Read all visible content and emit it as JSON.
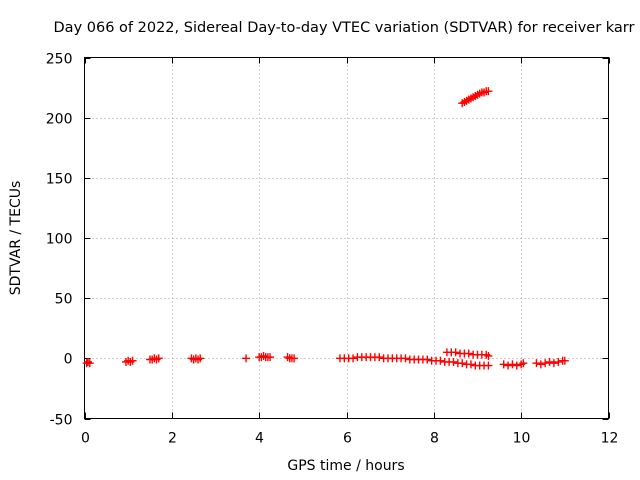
{
  "chart_data": {
    "type": "scatter",
    "title": "Day 066 of 2022, Sidereal Day-to-day VTEC variation (SDTVAR) for receiver karr",
    "xlabel": "GPS time / hours",
    "ylabel": "SDTVAR / TECUs",
    "xlim": [
      0,
      12
    ],
    "ylim": [
      -50,
      250
    ],
    "xticks": [
      "0",
      "2",
      "4",
      "6",
      "8",
      "10",
      "12"
    ],
    "yticks": [
      "-50",
      "0",
      "50",
      "100",
      "150",
      "200",
      "250"
    ],
    "grid": true,
    "legend": "none",
    "marker": "plus",
    "color": "#ff0000",
    "series": [
      {
        "points": [
          [
            0.05,
            -4
          ],
          [
            0.08,
            -3
          ],
          [
            0.12,
            -4
          ],
          [
            0.95,
            -3
          ],
          [
            1.0,
            -2
          ],
          [
            1.05,
            -3
          ],
          [
            1.1,
            -2
          ],
          [
            1.5,
            -1
          ],
          [
            1.55,
            -1
          ],
          [
            1.6,
            0
          ],
          [
            1.65,
            -1
          ],
          [
            1.7,
            0
          ],
          [
            2.45,
            0
          ],
          [
            2.5,
            -1
          ],
          [
            2.55,
            0
          ],
          [
            2.6,
            -1
          ],
          [
            2.65,
            0
          ],
          [
            3.7,
            0
          ],
          [
            4.0,
            1
          ],
          [
            4.05,
            1
          ],
          [
            4.1,
            2
          ],
          [
            4.15,
            1
          ],
          [
            4.2,
            1
          ],
          [
            4.25,
            1
          ],
          [
            4.65,
            1
          ],
          [
            4.7,
            0
          ],
          [
            4.75,
            0
          ],
          [
            4.8,
            0
          ],
          [
            5.85,
            0
          ],
          [
            5.95,
            0
          ],
          [
            6.05,
            0
          ],
          [
            6.15,
            0
          ],
          [
            6.25,
            1
          ],
          [
            6.35,
            1
          ],
          [
            6.45,
            1
          ],
          [
            6.55,
            1
          ],
          [
            6.65,
            1
          ],
          [
            6.75,
            1
          ],
          [
            6.85,
            0
          ],
          [
            6.95,
            0
          ],
          [
            7.05,
            0
          ],
          [
            7.15,
            0
          ],
          [
            7.25,
            0
          ],
          [
            7.35,
            0
          ],
          [
            7.45,
            -1
          ],
          [
            7.55,
            -1
          ],
          [
            7.65,
            -1
          ],
          [
            7.75,
            -1
          ],
          [
            7.85,
            -1
          ],
          [
            7.95,
            -2
          ],
          [
            8.05,
            -2
          ],
          [
            8.15,
            -2
          ],
          [
            8.25,
            -3
          ],
          [
            8.35,
            -3
          ],
          [
            8.45,
            -3
          ],
          [
            8.55,
            -4
          ],
          [
            8.65,
            -4
          ],
          [
            8.75,
            -5
          ],
          [
            8.85,
            -5
          ],
          [
            8.95,
            -6
          ],
          [
            9.05,
            -6
          ],
          [
            9.15,
            -6
          ],
          [
            9.25,
            -6
          ],
          [
            8.3,
            5
          ],
          [
            8.4,
            5
          ],
          [
            8.5,
            5
          ],
          [
            8.6,
            4
          ],
          [
            8.7,
            4
          ],
          [
            8.8,
            4
          ],
          [
            8.9,
            3
          ],
          [
            9.0,
            3
          ],
          [
            9.1,
            3
          ],
          [
            9.2,
            3
          ],
          [
            9.25,
            2
          ],
          [
            8.65,
            212
          ],
          [
            8.7,
            213
          ],
          [
            8.75,
            214
          ],
          [
            8.8,
            215
          ],
          [
            8.85,
            216
          ],
          [
            8.9,
            217
          ],
          [
            8.95,
            218
          ],
          [
            9.0,
            219
          ],
          [
            9.05,
            220
          ],
          [
            9.1,
            221
          ],
          [
            9.15,
            221
          ],
          [
            9.2,
            222
          ],
          [
            9.25,
            222
          ],
          [
            9.6,
            -5
          ],
          [
            9.7,
            -6
          ],
          [
            9.8,
            -5
          ],
          [
            9.9,
            -6
          ],
          [
            10.0,
            -5
          ],
          [
            10.05,
            -4
          ],
          [
            10.35,
            -4
          ],
          [
            10.45,
            -5
          ],
          [
            10.55,
            -4
          ],
          [
            10.65,
            -3
          ],
          [
            10.75,
            -4
          ],
          [
            10.85,
            -3
          ],
          [
            10.95,
            -2
          ],
          [
            11.0,
            -2
          ]
        ]
      }
    ]
  }
}
